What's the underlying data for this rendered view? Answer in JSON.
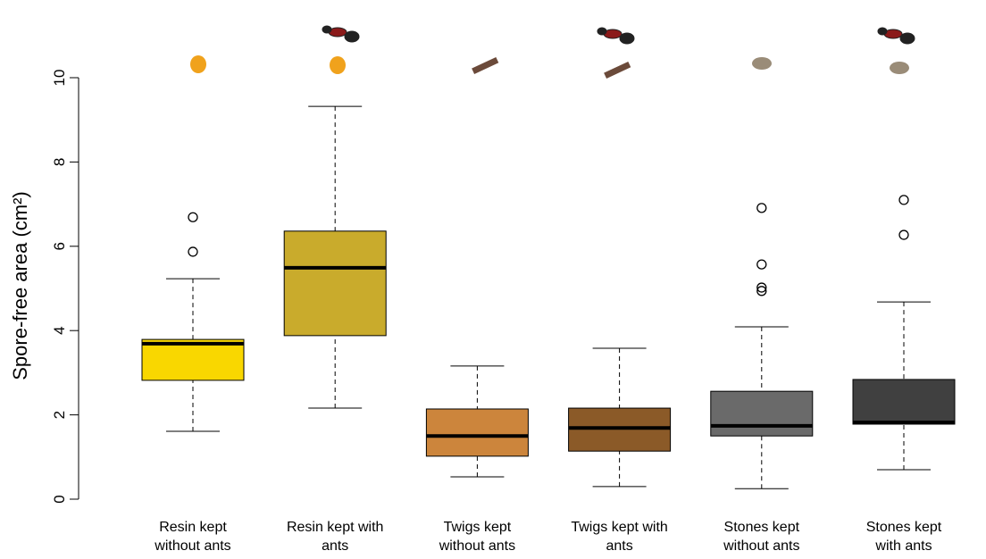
{
  "chart_data": {
    "type": "box",
    "ylabel": "Spore-free area (cm²)",
    "categories": [
      "Resin kept without ants",
      "Resin kept with ants",
      "Twigs kept without ants",
      "Twigs kept with ants",
      "Stones kept without ants",
      "Stones kept with ants"
    ],
    "boxes": [
      {
        "whislo": 1.61,
        "q1": 2.82,
        "med": 3.69,
        "q3": 3.79,
        "whishi": 5.23,
        "fliers": [
          5.87,
          6.69
        ],
        "color": "#f9d700"
      },
      {
        "whislo": 2.16,
        "q1": 3.88,
        "med": 5.49,
        "q3": 6.36,
        "whishi": 9.32,
        "fliers": [],
        "color": "#c9ab2c"
      },
      {
        "whislo": 0.53,
        "q1": 1.02,
        "med": 1.5,
        "q3": 2.14,
        "whishi": 3.16,
        "fliers": [],
        "color": "#cc853c"
      },
      {
        "whislo": 0.3,
        "q1": 1.14,
        "med": 1.69,
        "q3": 2.16,
        "whishi": 3.58,
        "fliers": [],
        "color": "#8b5a28"
      },
      {
        "whislo": 0.25,
        "q1": 1.5,
        "med": 1.74,
        "q3": 2.56,
        "whishi": 4.09,
        "fliers": [
          4.94,
          5.02,
          5.57,
          6.91
        ],
        "color": "#6a6a6a"
      },
      {
        "whislo": 0.7,
        "q1": 1.78,
        "med": 1.82,
        "q3": 2.84,
        "whishi": 4.68,
        "fliers": [
          6.27,
          7.1
        ],
        "color": "#404040"
      }
    ],
    "ylim": [
      0,
      10
    ],
    "yticks": [
      0,
      2,
      4,
      6,
      8,
      10
    ]
  }
}
